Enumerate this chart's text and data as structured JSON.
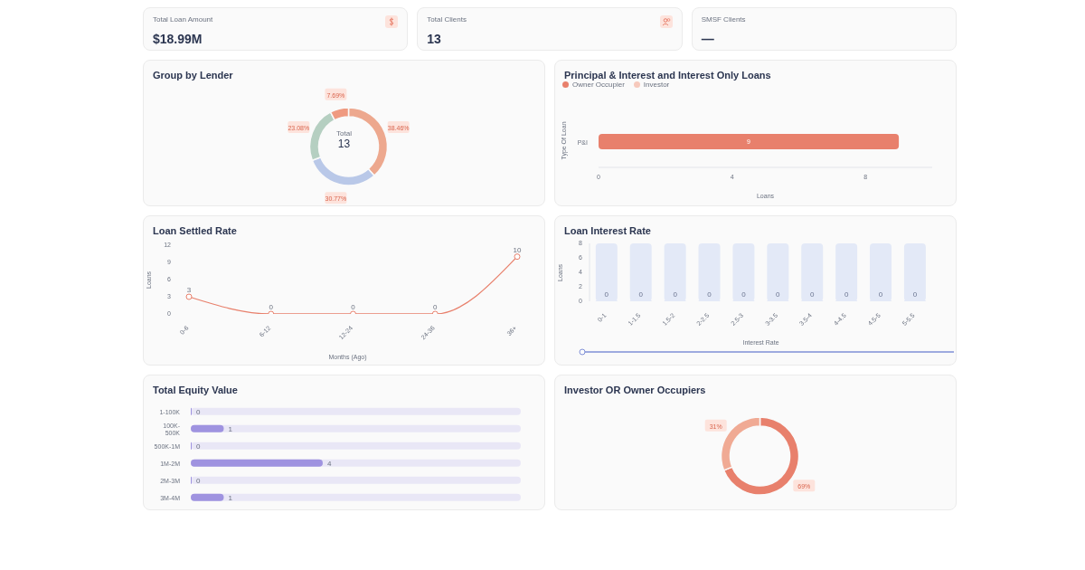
{
  "chart_data": [
    {
      "type": "other",
      "annotations": [
        "Total Loan Amount",
        "$18.99M",
        "Total Clients",
        "13",
        "SMSF Clients",
        "—"
      ]
    },
    {
      "type": "donut",
      "title": "Group by Lender",
      "categories": [
        null,
        null,
        null,
        null
      ],
      "values": [
        38.46,
        30.77,
        23.08,
        7.69
      ],
      "colors": [
        "#eda88e",
        "#b9c8e8",
        "#b5cfc1",
        "#ef9a80"
      ],
      "value_labels": [
        "38.46%",
        "30.77%",
        "23.08%",
        "7.69%"
      ],
      "annotations": [
        "Total",
        "13"
      ]
    },
    {
      "type": "bar",
      "title": "Principal & Interest and Interest Only Loans",
      "orientation": "horizontal",
      "stacked": true,
      "categories": [
        "P&I"
      ],
      "series": [
        {
          "name": "Owner Occupier",
          "color": "#e8806c",
          "values": [
            9
          ]
        },
        {
          "name": "Investor",
          "color": "#f6c9bc",
          "values": [
            null
          ]
        }
      ],
      "xlim": [
        0,
        10
      ],
      "xticks": [
        0,
        4,
        8
      ],
      "xlabel": "Loans",
      "ylabel": "Type Of Loan",
      "legend": "top left",
      "data_labels": true
    },
    {
      "type": "line",
      "title": "Loan Settled Rate",
      "categories": [
        "0-6",
        "6-12",
        "12-24",
        "24-36",
        "36+"
      ],
      "values": [
        3,
        0,
        0,
        0,
        10
      ],
      "color": "#e8806c",
      "ylim": [
        0,
        12
      ],
      "yticks": [
        0,
        3,
        6,
        9,
        12
      ],
      "xlabel": "Months (Ago)",
      "ylabel": "Loans",
      "marker": "circle",
      "data_labels": true
    },
    {
      "type": "bar",
      "title": "Loan Interest Rate",
      "categories": [
        "0-1",
        "1-1.5",
        "1.5-2",
        "2-2.5",
        "2.5-3",
        "3-3.5",
        "3.5-4",
        "4-4.5",
        "4.5-5",
        "5-5.5"
      ],
      "values": [
        0,
        0,
        0,
        0,
        0,
        0,
        0,
        0,
        0,
        0
      ],
      "color": "#e3e9f7",
      "ylim": [
        0,
        8
      ],
      "yticks": [
        0,
        2,
        4,
        6,
        8
      ],
      "xlabel": "Interest Rate",
      "ylabel": "Loans",
      "data_labels": true
    },
    {
      "type": "bar",
      "title": "Total Equity Value",
      "orientation": "horizontal",
      "categories": [
        "1-100K",
        "100K-500K",
        "500K-1M",
        "1M-2M",
        "2M-3M",
        "3M-4M"
      ],
      "values": [
        0,
        1,
        0,
        4,
        0,
        1
      ],
      "color": "#9f93e0",
      "tick_labels": "y",
      "data_labels": true
    },
    {
      "type": "donut",
      "title": "Investor OR Owner Occupiers",
      "categories": [
        null,
        null
      ],
      "values": [
        69,
        31
      ],
      "colors": [
        "#e8806c",
        "#f0aa94"
      ],
      "value_labels": [
        "69%",
        "31%"
      ]
    }
  ]
}
